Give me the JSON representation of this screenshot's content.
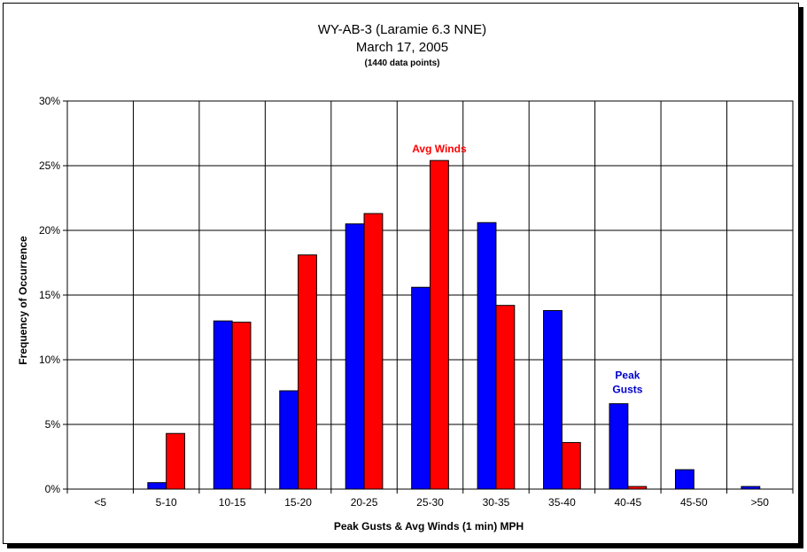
{
  "chart_data": {
    "type": "bar",
    "title": "WY-AB-3 (Laramie 6.3 NNE)",
    "title_line2": "March 17, 2005",
    "subtitle": "(1440 data points)",
    "xlabel": "Peak Gusts & Avg Winds (1 min) MPH",
    "ylabel": "Frequency of Occurrence",
    "categories": [
      "<5",
      "5-10",
      "10-15",
      "15-20",
      "20-25",
      "25-30",
      "30-35",
      "35-40",
      "40-45",
      "45-50",
      ">50"
    ],
    "ylim": [
      0,
      30
    ],
    "yticks": [
      "0%",
      "5%",
      "10%",
      "15%",
      "20%",
      "25%",
      "30%"
    ],
    "grid": true,
    "series": [
      {
        "color": "#0000ff",
        "values": [
          0,
          0.5,
          13.0,
          7.6,
          20.5,
          15.6,
          20.6,
          13.8,
          6.6,
          1.5,
          0.2
        ]
      },
      {
        "color": "#ff0000",
        "values": [
          0,
          4.3,
          12.9,
          18.1,
          21.3,
          25.4,
          14.2,
          3.6,
          0.2,
          0,
          0
        ]
      }
    ],
    "annotations": [
      {
        "text": "Avg Winds",
        "color": "#ff0000",
        "near": "red bar 25-30"
      },
      {
        "text_line1": "Peak",
        "text_line2": "Gusts",
        "color": "#0000cc",
        "near": "blue bar 40-45"
      }
    ]
  }
}
